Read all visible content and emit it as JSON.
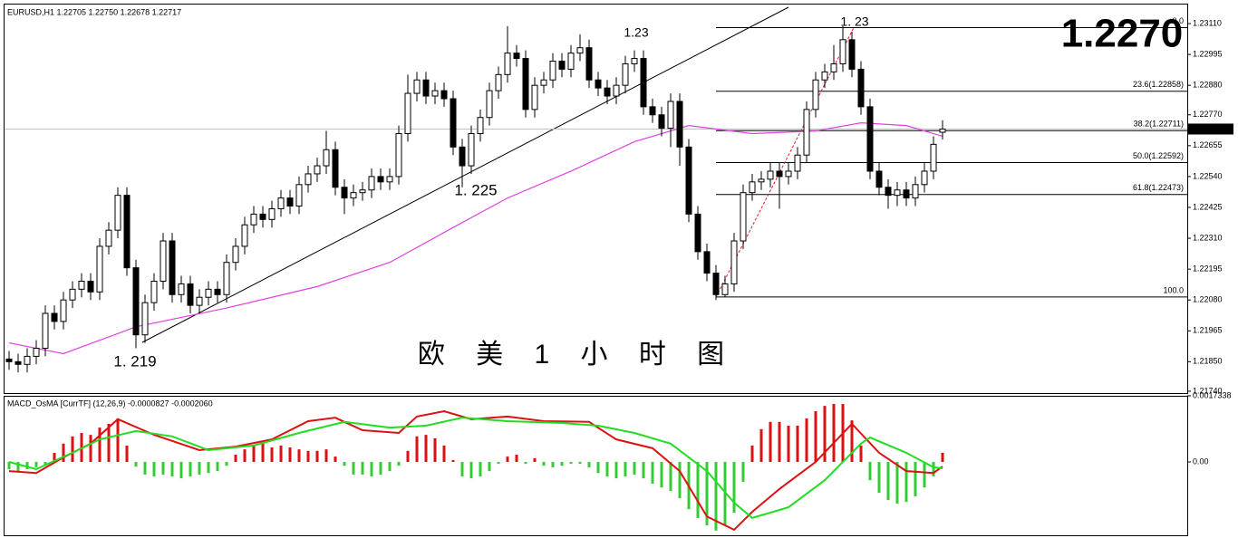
{
  "chart_data": [
    {
      "type": "candlestick",
      "header": "EURUSD,H1  1.22705 1.22750 1.22678 1.22717",
      "title": "欧 美 1 小 时 图",
      "big_label": "1.2270",
      "big_label_color": "#80ff20",
      "current_price": 1.22717,
      "up_color": "#ffffff",
      "down_color": "#000000",
      "open": [
        1.2186,
        1.2185,
        1.2184,
        1.2187,
        1.219,
        1.2203,
        1.22,
        1.2208,
        1.2212,
        1.2215,
        1.2211,
        1.2228,
        1.2234,
        1.2247,
        1.222,
        1.2195,
        1.2207,
        1.2215,
        1.223,
        1.221,
        1.2214,
        1.2206,
        1.2209,
        1.2212,
        1.221,
        1.2222,
        1.2228,
        1.2236,
        1.224,
        1.2238,
        1.2242,
        1.2246,
        1.2243,
        1.2251,
        1.2255,
        1.2258,
        1.2264,
        1.225,
        1.2246,
        1.2248,
        1.2249,
        1.2254,
        1.2252,
        1.2254,
        1.227,
        1.2285,
        1.229,
        1.2284,
        1.2286,
        1.2283,
        1.2265,
        1.2258,
        1.227,
        1.2276,
        1.2286,
        1.2292,
        1.23,
        1.2298,
        1.2279,
        1.2288,
        1.229,
        1.2297,
        1.2294,
        1.23,
        1.2302,
        1.229,
        1.2287,
        1.2284,
        1.2288,
        1.2296,
        1.2298,
        1.228,
        1.2277,
        1.2272,
        1.2282,
        1.2265,
        1.224,
        1.2226,
        1.2218,
        1.221,
        1.2214,
        1.223,
        1.2248,
        1.2252,
        1.2253,
        1.2256,
        1.2254,
        1.2256,
        1.2262,
        1.2279,
        1.229,
        1.2293,
        1.2296,
        1.2305,
        1.2294,
        1.228,
        1.2256,
        1.225,
        1.2247,
        1.2249,
        1.2246,
        1.2251,
        1.2256,
        1.22705
      ],
      "high": [
        1.2189,
        1.2188,
        1.219,
        1.2193,
        1.2206,
        1.2206,
        1.2211,
        1.2215,
        1.2218,
        1.2218,
        1.2231,
        1.2237,
        1.225,
        1.225,
        1.2223,
        1.221,
        1.2218,
        1.2233,
        1.2233,
        1.2217,
        1.2217,
        1.2212,
        1.2215,
        1.2215,
        1.2225,
        1.2231,
        1.2239,
        1.2243,
        1.2243,
        1.2245,
        1.2249,
        1.2249,
        1.2254,
        1.2258,
        1.2261,
        1.2271,
        1.2267,
        1.2253,
        1.2251,
        1.2252,
        1.2257,
        1.2257,
        1.2257,
        1.2273,
        1.2292,
        1.2293,
        1.2293,
        1.2289,
        1.2289,
        1.2286,
        1.2268,
        1.2273,
        1.2279,
        1.2289,
        1.2295,
        1.231,
        1.2303,
        1.2301,
        1.2291,
        1.2293,
        1.23,
        1.23,
        1.2303,
        1.2307,
        1.2305,
        1.2293,
        1.229,
        1.2291,
        1.2299,
        1.2301,
        1.2301,
        1.2283,
        1.228,
        1.2285,
        1.2285,
        1.2268,
        1.2243,
        1.2229,
        1.2221,
        1.2217,
        1.2233,
        1.2251,
        1.2255,
        1.2256,
        1.2259,
        1.2259,
        1.2259,
        1.2265,
        1.2282,
        1.2293,
        1.2296,
        1.2303,
        1.231,
        1.2308,
        1.2297,
        1.2283,
        1.2259,
        1.2253,
        1.2252,
        1.2252,
        1.2254,
        1.2259,
        1.2269,
        1.2275
      ],
      "low": [
        1.2182,
        1.2181,
        1.2181,
        1.2184,
        1.2187,
        1.2197,
        1.2197,
        1.2205,
        1.2209,
        1.2208,
        1.2208,
        1.2225,
        1.2231,
        1.2217,
        1.219,
        1.2192,
        1.2204,
        1.2212,
        1.2207,
        1.2207,
        1.2203,
        1.2203,
        1.2206,
        1.2207,
        1.2207,
        1.2219,
        1.2225,
        1.2233,
        1.2235,
        1.2235,
        1.2239,
        1.224,
        1.224,
        1.2248,
        1.2252,
        1.2255,
        1.2247,
        1.224,
        1.2243,
        1.2245,
        1.2246,
        1.2249,
        1.2249,
        1.2251,
        1.2267,
        1.2282,
        1.2281,
        1.2281,
        1.228,
        1.2262,
        1.225,
        1.2255,
        1.2267,
        1.2273,
        1.2283,
        1.2289,
        1.2295,
        1.2276,
        1.2276,
        1.2285,
        1.2287,
        1.2291,
        1.2291,
        1.2297,
        1.2287,
        1.2284,
        1.2281,
        1.2281,
        1.2285,
        1.2293,
        1.2277,
        1.2274,
        1.2269,
        1.2265,
        1.2258,
        1.2237,
        1.2223,
        1.2215,
        1.2208,
        1.2209,
        1.2211,
        1.2227,
        1.2245,
        1.2249,
        1.225,
        1.2242,
        1.2251,
        1.2253,
        1.2259,
        1.2276,
        1.2287,
        1.229,
        1.2293,
        1.2291,
        1.2277,
        1.2253,
        1.2247,
        1.2242,
        1.2243,
        1.2243,
        1.2243,
        1.2248,
        1.2253,
        1.22678
      ],
      "close": [
        1.2185,
        1.2184,
        1.2187,
        1.219,
        1.2203,
        1.22,
        1.2208,
        1.2212,
        1.2215,
        1.2211,
        1.2228,
        1.2234,
        1.2247,
        1.222,
        1.2195,
        1.2207,
        1.2215,
        1.223,
        1.221,
        1.2214,
        1.2206,
        1.2209,
        1.2212,
        1.221,
        1.2222,
        1.2228,
        1.2236,
        1.224,
        1.2238,
        1.2242,
        1.2246,
        1.2243,
        1.2251,
        1.2255,
        1.2258,
        1.2264,
        1.225,
        1.2246,
        1.2248,
        1.2249,
        1.2254,
        1.2252,
        1.2254,
        1.227,
        1.2285,
        1.229,
        1.2284,
        1.2286,
        1.2283,
        1.2265,
        1.2258,
        1.227,
        1.2276,
        1.2286,
        1.2292,
        1.23,
        1.2298,
        1.2279,
        1.2288,
        1.229,
        1.2297,
        1.2294,
        1.23,
        1.2302,
        1.229,
        1.2287,
        1.2284,
        1.2288,
        1.2296,
        1.2298,
        1.228,
        1.2277,
        1.2272,
        1.2282,
        1.2265,
        1.224,
        1.2226,
        1.2218,
        1.221,
        1.2214,
        1.223,
        1.2248,
        1.2252,
        1.2253,
        1.2256,
        1.2254,
        1.2256,
        1.2262,
        1.2279,
        1.229,
        1.2293,
        1.2296,
        1.2305,
        1.2294,
        1.228,
        1.2256,
        1.225,
        1.2247,
        1.2249,
        1.2246,
        1.2251,
        1.2256,
        1.2266,
        1.22717
      ],
      "ma": {
        "color": "#e040e0",
        "x": [
          0,
          6,
          14,
          24,
          34,
          42,
          49,
          55,
          62,
          69,
          75,
          82,
          89,
          94,
          99,
          103
        ],
        "values": [
          1.2192,
          1.2188,
          1.2198,
          1.2205,
          1.2213,
          1.2222,
          1.2235,
          1.2246,
          1.2256,
          1.2267,
          1.2273,
          1.227,
          1.2271,
          1.2274,
          1.2273,
          1.2269
        ]
      },
      "fibonacci": [
        {
          "label": "0.0",
          "value": 1.23095
        },
        {
          "label": "23.6(1.22858)",
          "value": 1.22858
        },
        {
          "label": "38.2(1.22711)",
          "value": 1.22711
        },
        {
          "label": "50.0(1.22592)",
          "value": 1.22592
        },
        {
          "label": "61.8(1.22473)",
          "value": 1.22473
        },
        {
          "label": "100.0",
          "value": 1.22091
        }
      ],
      "annotations": [
        {
          "text": "1. 219",
          "color": "#000000"
        },
        {
          "text": "1. 225",
          "color": "#000000"
        },
        {
          "text": "1.23",
          "color": "#e8602c"
        },
        {
          "text": "1. 23",
          "color": "#e8602c"
        }
      ],
      "ylim": [
        1.21733,
        1.23181
      ],
      "yticks": [
        {
          "value": 1.2311,
          "label": "1.23110"
        },
        {
          "value": 1.22995,
          "label": "1.22995"
        },
        {
          "value": 1.2288,
          "label": "1.22880"
        },
        {
          "value": 1.2277,
          "label": "1.22770"
        },
        {
          "value": 1.22655,
          "label": "1.22655"
        },
        {
          "value": 1.2254,
          "label": "1.22540"
        },
        {
          "value": 1.22425,
          "label": "1.22425"
        },
        {
          "value": 1.2231,
          "label": "1.22310"
        },
        {
          "value": 1.22195,
          "label": "1.22195"
        },
        {
          "value": 1.2208,
          "label": "1.22080"
        },
        {
          "value": 1.21965,
          "label": "1.21965"
        },
        {
          "value": 1.2185,
          "label": "1.21850"
        },
        {
          "value": 1.2174,
          "label": "1.21740"
        }
      ]
    },
    {
      "type": "macd",
      "title": "MACD_OsMA [CurrTF] (12,26,9) -0.0000827 -0.0002060",
      "positive_color": "#dd1111",
      "negative_color": "#33cc33",
      "histogram": [
        -0.00019,
        -0.00024,
        -0.00019,
        -0.00014,
        -0.0001,
        0.00024,
        0.00048,
        0.00067,
        0.00076,
        0.00071,
        0.0009,
        0.001,
        0.00114,
        0.00043,
        -0.00012,
        -0.00033,
        -0.00038,
        -0.00033,
        -0.00038,
        -0.00043,
        -0.00038,
        -0.00033,
        -0.00029,
        -0.00024,
        -0.0001,
        0.00019,
        0.00033,
        0.00043,
        0.00048,
        0.00038,
        0.00043,
        0.00038,
        0.00033,
        0.00029,
        0.00029,
        0.00033,
        0.00014,
        -0.0001,
        -0.00033,
        -0.00033,
        -0.00038,
        -0.00033,
        -0.00024,
        -0.0001,
        0.00029,
        0.00067,
        0.00071,
        0.00062,
        0.00043,
        5e-05,
        -0.00038,
        -0.00043,
        -0.00038,
        -0.00024,
        -5e-05,
        0.00014,
        0.00019,
        -5e-05,
        0.0001,
        -0.0001,
        -0.00014,
        -0.0001,
        -5e-05,
        -5e-05,
        -0.00014,
        -0.00029,
        -0.00038,
        -0.00043,
        -0.00038,
        -0.00033,
        -0.00043,
        -0.00057,
        -0.00067,
        -0.00076,
        -0.00095,
        -0.00124,
        -0.00147,
        -0.00166,
        -0.0018,
        -0.00166,
        -0.00133,
        -0.00052,
        0.00043,
        0.00086,
        0.00105,
        0.00105,
        0.00095,
        0.00095,
        0.00114,
        0.00133,
        0.00147,
        0.00152,
        0.00152,
        0.00109,
        0.00043,
        -0.00048,
        -0.00081,
        -0.001,
        -0.00109,
        -0.00105,
        -0.0009,
        -0.00067,
        -0.00038,
        0.00024
      ],
      "series": [
        {
          "color": "#dd1111",
          "x": [
            0,
            3,
            6,
            9,
            12,
            16,
            21,
            25,
            29,
            33,
            36,
            39,
            43,
            45,
            48,
            51,
            55,
            59,
            64,
            67,
            71,
            74,
            77,
            80,
            82,
            85,
            89,
            93,
            96,
            99,
            102,
            103
          ],
          "values": [
            -0.00024,
            -0.00029,
            0.00012,
            0.00048,
            0.00112,
            0.00071,
            0.00031,
            0.0004,
            0.00059,
            0.00107,
            0.00116,
            0.00083,
            0.00076,
            0.00119,
            0.00133,
            0.00112,
            0.00119,
            0.00107,
            0.00105,
            0.00059,
            0.00036,
            -0.00024,
            -0.00143,
            -0.00178,
            -0.00131,
            -0.00071,
            0,
            0.001,
            0.00024,
            -0.00024,
            -0.00029,
            -0.00012
          ]
        },
        {
          "color": "#22dd22",
          "x": [
            0,
            3,
            7,
            10,
            14,
            18,
            22,
            27,
            32,
            37,
            42,
            46,
            50,
            55,
            61,
            65,
            69,
            73,
            77,
            80,
            82,
            86,
            90,
            94,
            95,
            99,
            102,
            103
          ],
          "values": [
            0,
            -0.00019,
            0.00024,
            0.00059,
            0.00081,
            0.00067,
            0.00031,
            0.00043,
            0.00076,
            0.00105,
            0.0009,
            0.00095,
            0.00116,
            0.00107,
            0.00102,
            0.00095,
            0.00076,
            0.00048,
            -0.00024,
            -0.00107,
            -0.00147,
            -0.00119,
            -0.00048,
            0.00048,
            0.00064,
            0.00024,
            -0.00014,
            -0.00017
          ]
        }
      ],
      "ylim": [
        -0.0019,
        0.0017338
      ],
      "yticks": [
        0.0017338,
        {
          "value": 0,
          "label": "0.00"
        }
      ]
    }
  ]
}
